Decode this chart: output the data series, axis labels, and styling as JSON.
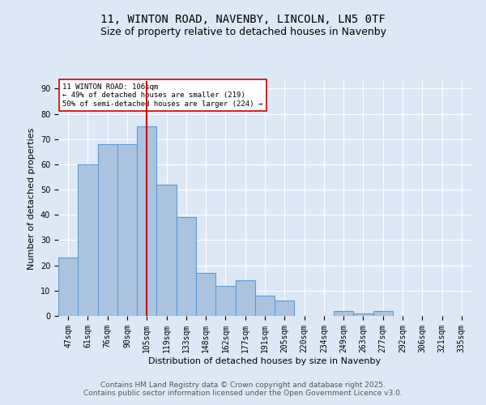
{
  "title": "11, WINTON ROAD, NAVENBY, LINCOLN, LN5 0TF",
  "subtitle": "Size of property relative to detached houses in Navenby",
  "xlabel": "Distribution of detached houses by size in Navenby",
  "ylabel": "Number of detached properties",
  "categories": [
    "47sqm",
    "61sqm",
    "76sqm",
    "90sqm",
    "105sqm",
    "119sqm",
    "133sqm",
    "148sqm",
    "162sqm",
    "177sqm",
    "191sqm",
    "205sqm",
    "220sqm",
    "234sqm",
    "249sqm",
    "263sqm",
    "277sqm",
    "292sqm",
    "306sqm",
    "321sqm",
    "335sqm"
  ],
  "values": [
    23,
    60,
    68,
    68,
    75,
    52,
    39,
    17,
    12,
    14,
    8,
    6,
    0,
    0,
    2,
    1,
    2,
    0,
    0,
    0,
    0
  ],
  "bar_color": "#aac4e0",
  "bar_edge_color": "#5b9bd5",
  "bar_linewidth": 0.8,
  "vline_x_index": 4,
  "vline_color": "#cc0000",
  "vline_linewidth": 1.5,
  "annotation_text": "11 WINTON ROAD: 106sqm\n← 49% of detached houses are smaller (219)\n50% of semi-detached houses are larger (224) →",
  "annotation_box_color": "#ffffff",
  "annotation_box_edge": "#cc0000",
  "annotation_fontsize": 6.5,
  "ylim": [
    0,
    93
  ],
  "yticks": [
    0,
    10,
    20,
    30,
    40,
    50,
    60,
    70,
    80,
    90
  ],
  "background_color": "#dce8f5",
  "grid_color": "#ffffff",
  "title_fontsize": 10,
  "subtitle_fontsize": 9,
  "xlabel_fontsize": 8,
  "ylabel_fontsize": 8,
  "tick_fontsize": 7,
  "footer_text": "Contains HM Land Registry data © Crown copyright and database right 2025.\nContains public sector information licensed under the Open Government Licence v3.0.",
  "footer_fontsize": 6.5
}
